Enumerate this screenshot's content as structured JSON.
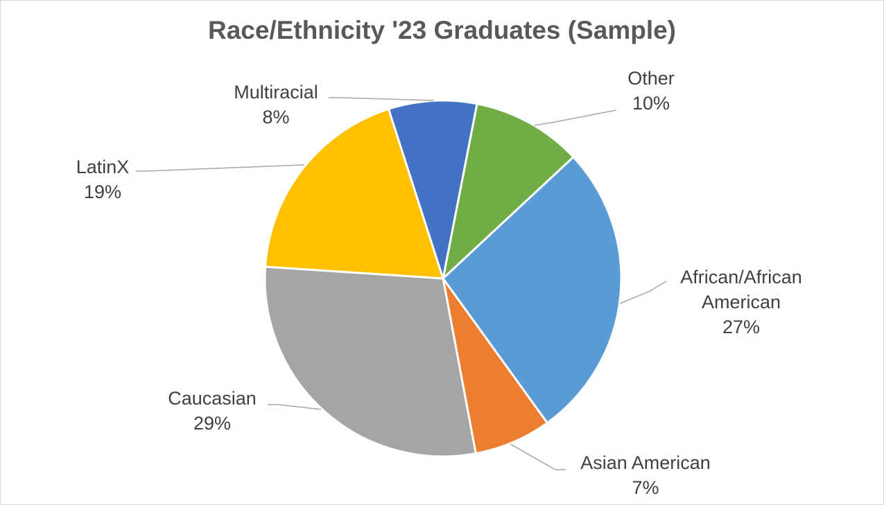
{
  "chart_data": {
    "type": "pie",
    "title": "Race/Ethnicity '23 Graduates (Sample)",
    "categories": [
      "Other",
      "African/African American",
      "Asian American",
      "Caucasian",
      "LatinX",
      "Multiracial"
    ],
    "values": [
      10,
      27,
      7,
      29,
      19,
      8
    ],
    "value_labels": [
      "10%",
      "27%",
      "7%",
      "29%",
      "19%",
      "8%"
    ],
    "colors": [
      "#70ad47",
      "#5b9bd5",
      "#ed7d31",
      "#a5a5a5",
      "#ffc000",
      "#4472c4"
    ]
  }
}
